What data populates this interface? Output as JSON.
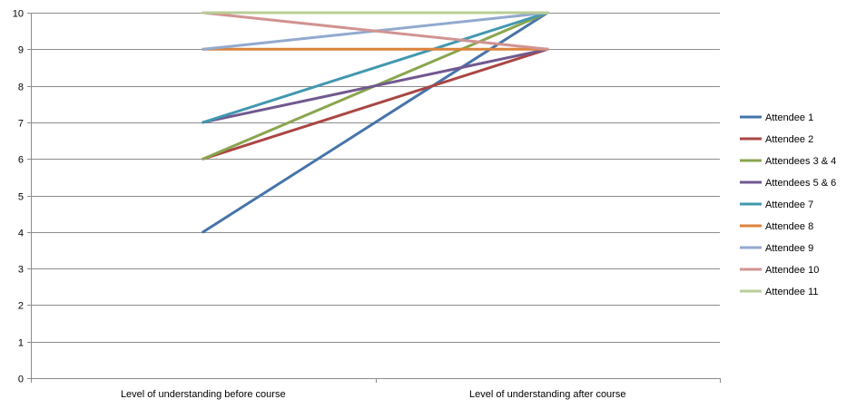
{
  "chart_data": {
    "type": "line",
    "categories": [
      "Level of understanding before course",
      "Level of understanding after course"
    ],
    "ylim": [
      0,
      10
    ],
    "yticks": [
      0,
      1,
      2,
      3,
      4,
      5,
      6,
      7,
      8,
      9,
      10
    ],
    "grid": true,
    "legend_position": "right",
    "series": [
      {
        "name": "Attendee 1",
        "values": [
          4,
          10
        ],
        "color": "#4674a9"
      },
      {
        "name": "Attendee 2",
        "values": [
          6,
          9
        ],
        "color": "#aa4643"
      },
      {
        "name": "Attendees 3 & 4",
        "values": [
          6,
          10
        ],
        "color": "#89a54e"
      },
      {
        "name": "Attendees 5 & 6",
        "values": [
          7,
          9
        ],
        "color": "#71588f"
      },
      {
        "name": "Attendee 7",
        "values": [
          7,
          10
        ],
        "color": "#4198af"
      },
      {
        "name": "Attendee 8",
        "values": [
          9,
          9
        ],
        "color": "#db843d"
      },
      {
        "name": "Attendee 9",
        "values": [
          9,
          10
        ],
        "color": "#93a9cf"
      },
      {
        "name": "Attendee 10",
        "values": [
          10,
          9
        ],
        "color": "#d19392"
      },
      {
        "name": "Attendee 11",
        "values": [
          10,
          10
        ],
        "color": "#b9cd96"
      }
    ]
  }
}
